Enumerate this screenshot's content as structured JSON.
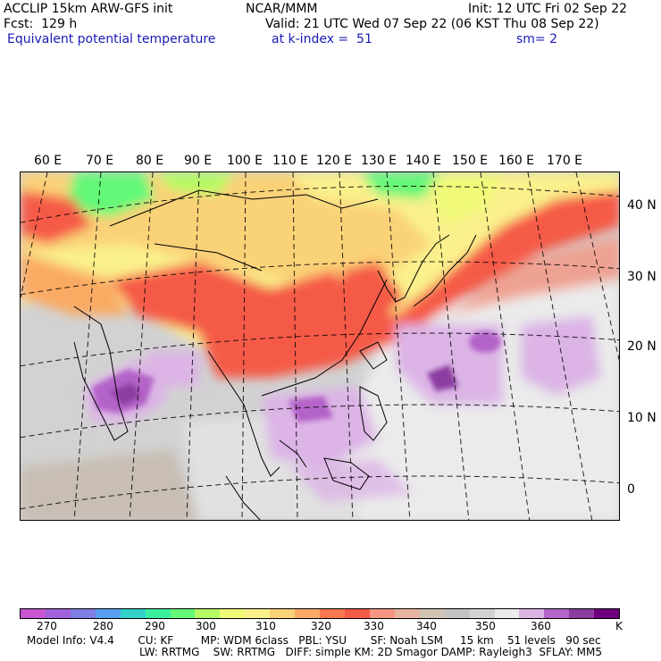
{
  "header": {
    "model": "ACCLIP 15km ARW-GFS init",
    "center": "NCAR/MMM",
    "init": "Init: 12 UTC Fri 02 Sep 22",
    "forecast": "Fcst:  129 h",
    "valid": "Valid: 21 UTC Wed 07 Sep 22 (06 KST Thu 08 Sep 22)",
    "field": "Equivalent potential temperature",
    "level": "at k-index =  51",
    "smoothing": "sm= 2"
  },
  "map": {
    "longitude_labels": [
      "60 E",
      "70 E",
      "80 E",
      "90 E",
      "100 E",
      "110 E",
      "120 E",
      "130 E",
      "140 E",
      "150 E",
      "160 E",
      "170 E"
    ],
    "latitude_labels": [
      "40 N",
      "30 N",
      "20 N",
      "10 N",
      "0"
    ]
  },
  "colorbar": {
    "colors": [
      "#c855d2",
      "#a062dc",
      "#7f7fe6",
      "#5aa0f0",
      "#32d2c8",
      "#3cf0a0",
      "#64f878",
      "#b4fa64",
      "#f0fa78",
      "#faf08c",
      "#fad278",
      "#faaa64",
      "#fa7850",
      "#f55a46",
      "#f59682",
      "#e6b4a0",
      "#d2c3b4",
      "#c3c3c3",
      "#d2d2d2",
      "#ebebeb",
      "#dcb4e6",
      "#b464c8",
      "#8c3ca0",
      "#6e007d"
    ],
    "tick_labels": [
      "270",
      "280",
      "290",
      "300",
      "310",
      "320",
      "330",
      "340",
      "350",
      "360"
    ],
    "unit": "K"
  },
  "model_info": {
    "line1": "Model Info: V4.4       CU: KF        MP: WDM 6class   PBL: YSU       SF: Noah LSM     15 km    51 levels   90 sec",
    "line2": "LW: RRTMG    SW: RRTMG   DIFF: simple KM: 2D Smagor DAMP: Rayleigh3  SFLAY: MM5"
  }
}
